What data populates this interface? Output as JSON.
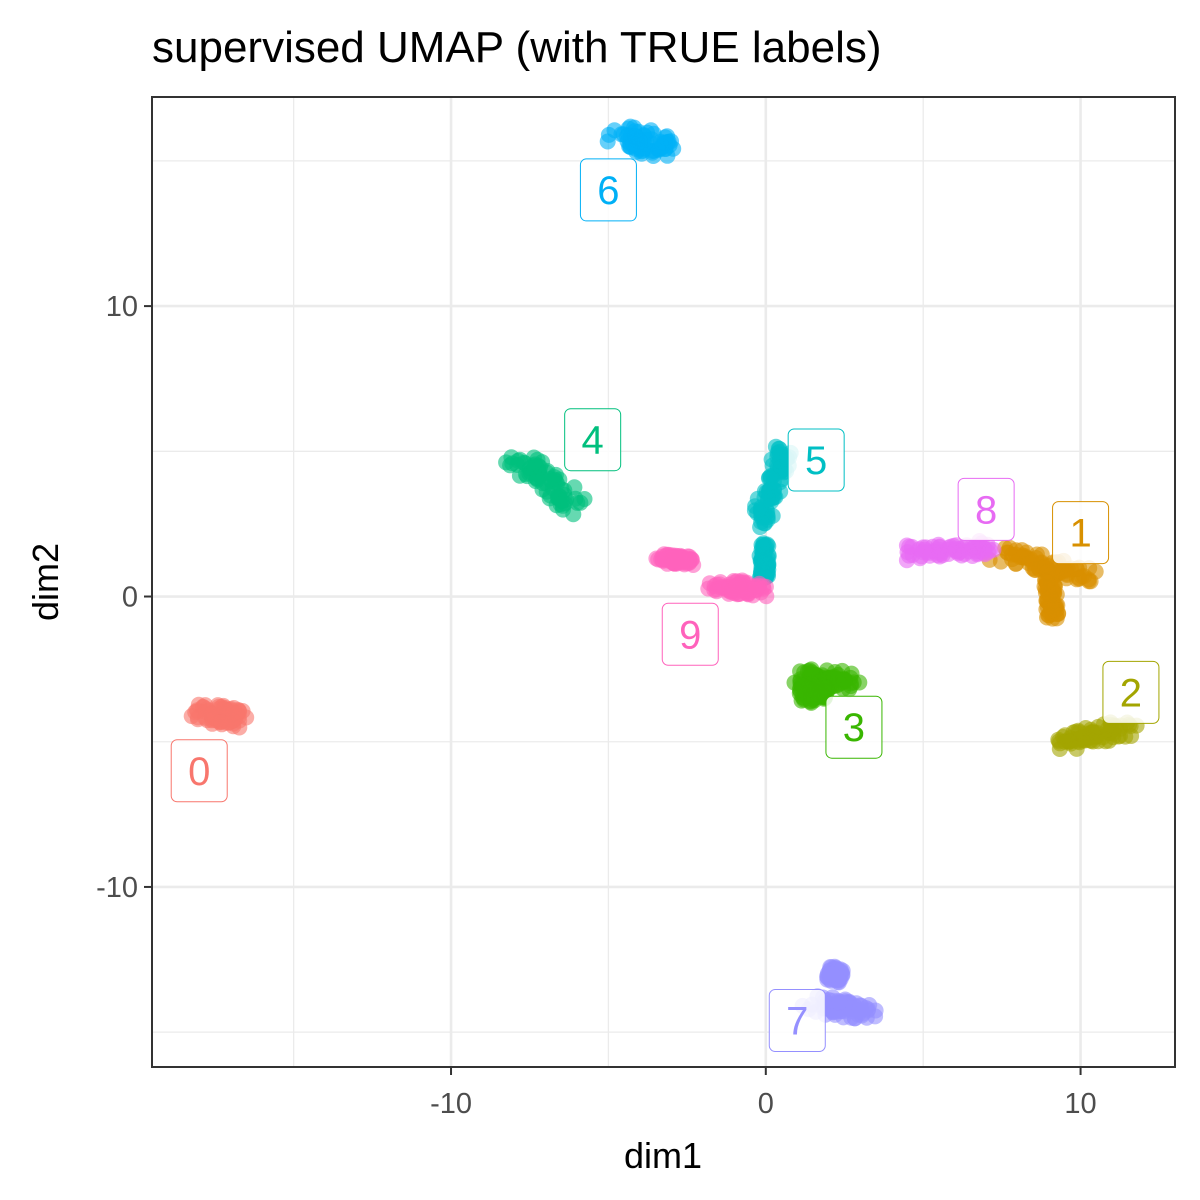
{
  "chart_data": {
    "type": "scatter",
    "title": "supervised UMAP (with TRUE labels)",
    "xlabel": "dim1",
    "ylabel": "dim2",
    "xlim": [
      -19.5,
      13
    ],
    "ylim": [
      -16.2,
      17.2
    ],
    "x_ticks": [
      -10,
      0,
      10
    ],
    "y_ticks": [
      -10,
      0,
      10
    ],
    "x_tick_labels": [
      "-10",
      "0",
      "10"
    ],
    "y_tick_labels": [
      "-10",
      "0",
      "10"
    ],
    "grid": true,
    "legend": "none",
    "clusters": [
      {
        "name": "0",
        "color": "#F8766D",
        "label_pos": [
          -18,
          -6
        ],
        "segments": [
          [
            -17.8,
            -4.0,
            -16.7,
            -4.2,
            0.6
          ]
        ]
      },
      {
        "name": "1",
        "color": "#D89000",
        "label_pos": [
          10,
          2.2
        ],
        "segments": [
          [
            7.5,
            1.4,
            10.2,
            0.8,
            0.55
          ],
          [
            9.0,
            0.8,
            9.1,
            -0.7,
            0.2
          ]
        ]
      },
      {
        "name": "2",
        "color": "#A3A500",
        "label_pos": [
          11.6,
          -3.3
        ],
        "segments": [
          [
            9.5,
            -5.0,
            11.5,
            -4.5,
            0.55
          ]
        ]
      },
      {
        "name": "3",
        "color": "#39B600",
        "label_pos": [
          2.8,
          -4.5
        ],
        "segments": [
          [
            1.3,
            -2.8,
            2.6,
            -2.9,
            0.55
          ],
          [
            1.5,
            -3.4,
            1.5,
            -3.2,
            0.5
          ]
        ]
      },
      {
        "name": "4",
        "color": "#00BF7D",
        "label_pos": [
          -5.5,
          5.4
        ],
        "segments": [
          [
            -8.0,
            4.9,
            -6.0,
            3.1,
            0.55
          ]
        ]
      },
      {
        "name": "5",
        "color": "#00BFC4",
        "label_pos": [
          1.6,
          4.7
        ],
        "segments": [
          [
            -0.2,
            2.5,
            0.6,
            5.1,
            0.35
          ],
          [
            -0.05,
            1.8,
            -0.05,
            0.6,
            0.15
          ]
        ]
      },
      {
        "name": "6",
        "color": "#00B0F6",
        "label_pos": [
          -5.0,
          14.0
        ],
        "segments": [
          [
            -4.5,
            15.8,
            -3.2,
            15.5,
            0.75
          ]
        ]
      },
      {
        "name": "7",
        "color": "#9590FF",
        "label_pos": [
          1.0,
          -14.6
        ],
        "segments": [
          [
            1.6,
            -14.0,
            3.1,
            -14.3,
            0.55
          ],
          [
            2.2,
            -12.8,
            2.2,
            -13.2,
            0.25
          ]
        ]
      },
      {
        "name": "8",
        "color": "#E76BF3",
        "label_pos": [
          7.0,
          3.0
        ],
        "segments": [
          [
            4.5,
            1.5,
            7.0,
            1.7,
            0.45
          ]
        ]
      },
      {
        "name": "9",
        "color": "#FF62BC",
        "label_pos": [
          -2.4,
          -1.3
        ],
        "segments": [
          [
            -1.6,
            0.4,
            -0.2,
            0.2,
            0.45
          ],
          [
            -3.3,
            1.3,
            -2.4,
            1.2,
            0.3
          ]
        ]
      }
    ]
  }
}
